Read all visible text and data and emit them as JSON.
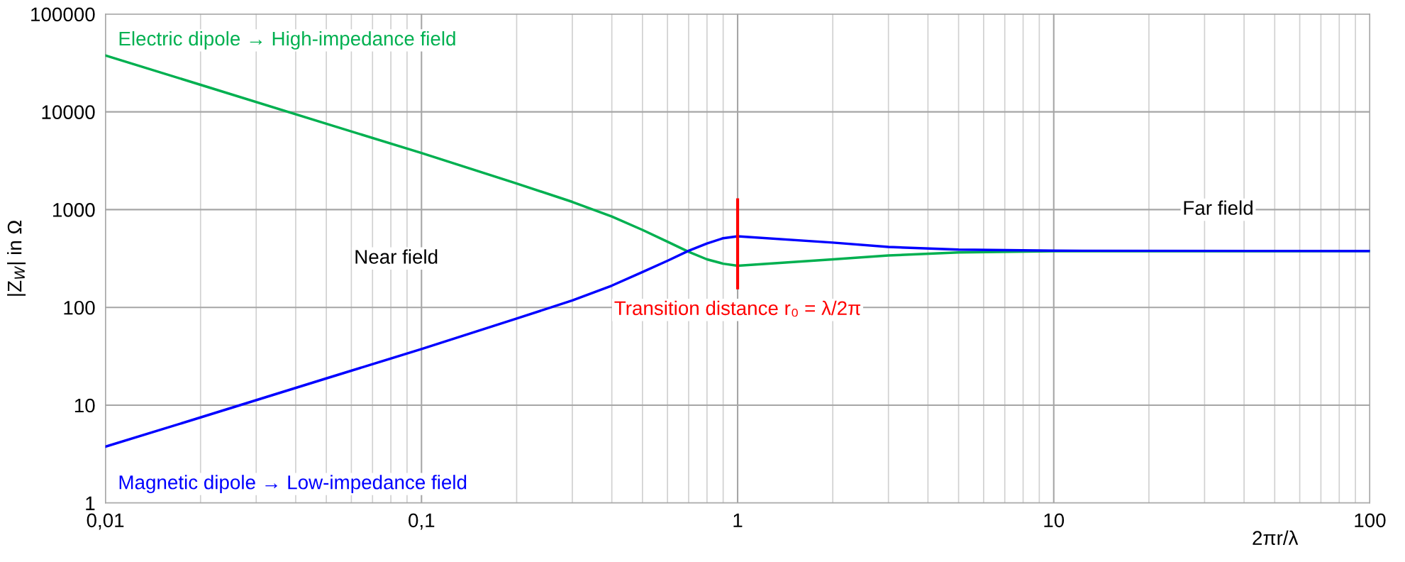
{
  "chart_data": {
    "type": "line",
    "log": "xy",
    "ylabel": "|Z$_{W}$| in Ω",
    "xlabel": "2πr/λ",
    "xlim": [
      0.01,
      100
    ],
    "ylim": [
      1,
      100000
    ],
    "xticks": [
      {
        "value": 0.01,
        "label": "0,01"
      },
      {
        "value": 0.1,
        "label": "0,1"
      },
      1,
      10,
      100
    ],
    "yticks": [
      1,
      10,
      100,
      1000,
      10000,
      100000
    ],
    "grid": true,
    "legend": false,
    "marker": "none",
    "line_style": "solid",
    "series": [
      {
        "name": "Electric dipole → High-impedance field",
        "color": "#00b050",
        "x": [
          0.01,
          0.02,
          0.05,
          0.1,
          0.2,
          0.3,
          0.4,
          0.5,
          0.6,
          0.7,
          0.8,
          0.9,
          1,
          2,
          3,
          5,
          10,
          100
        ],
        "values": [
          37700,
          18900,
          7550,
          3790,
          1850,
          1200,
          850,
          620,
          470,
          370,
          310,
          280,
          267,
          310,
          340,
          365,
          375,
          377
        ]
      },
      {
        "name": "Magnetic dipole → Low-impedance field",
        "color": "#0000ff",
        "x": [
          0.01,
          0.02,
          0.05,
          0.1,
          0.2,
          0.3,
          0.4,
          0.5,
          0.6,
          0.7,
          0.8,
          0.9,
          1,
          2,
          3,
          5,
          10,
          100
        ],
        "values": [
          3.77,
          7.5,
          18.8,
          37.5,
          77,
          118,
          167,
          230,
          300,
          380,
          450,
          510,
          533,
          460,
          415,
          390,
          380,
          377
        ]
      }
    ],
    "ref_lines": [
      {
        "axis": "x",
        "value": 1,
        "label": "Transition distance r₀ = λ/2π",
        "color": "#ff0000"
      }
    ],
    "annotations": [
      "Near field",
      "Far field"
    ]
  }
}
